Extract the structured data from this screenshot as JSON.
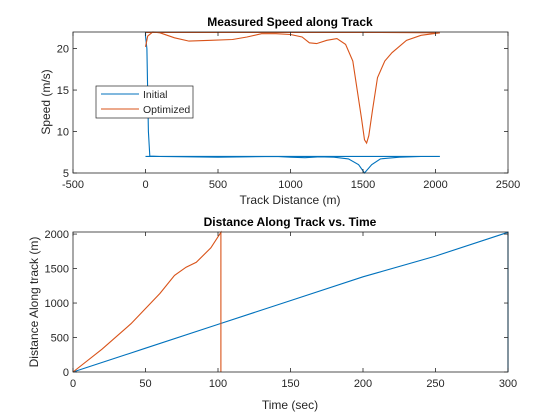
{
  "colors": {
    "initial": "#0072BD",
    "optimized": "#D95319",
    "axis": "#262626",
    "background": "#ffffff"
  },
  "chart_data": [
    {
      "type": "line",
      "title": "Measured Speed along Track",
      "xlabel": "Track Distance (m)",
      "ylabel": "Speed (m/s)",
      "xlim": [
        -500,
        2500
      ],
      "ylim": [
        5,
        22
      ],
      "xticks": [
        -500,
        0,
        500,
        1000,
        1500,
        2000,
        2500
      ],
      "yticks": [
        5,
        10,
        15,
        20
      ],
      "grid": false,
      "legend": {
        "placement": "middle-left",
        "entries": [
          "Initial",
          "Optimized"
        ]
      },
      "series": [
        {
          "name": "Initial",
          "color": "#0072BD",
          "points": [
            [
              0,
              22
            ],
            [
              0,
              21.5
            ],
            [
              10,
              20
            ],
            [
              20,
              10
            ],
            [
              30,
              7.05
            ],
            [
              100,
              7.0
            ],
            [
              300,
              6.95
            ],
            [
              500,
              6.9
            ],
            [
              700,
              6.95
            ],
            [
              900,
              7.0
            ],
            [
              1000,
              6.9
            ],
            [
              1100,
              6.85
            ],
            [
              1200,
              6.95
            ],
            [
              1300,
              6.9
            ],
            [
              1400,
              6.7
            ],
            [
              1470,
              6.0
            ],
            [
              1510,
              5.0
            ],
            [
              1560,
              6.0
            ],
            [
              1620,
              6.7
            ],
            [
              1750,
              6.9
            ],
            [
              1900,
              7.0
            ],
            [
              2030,
              7.0
            ],
            [
              1800,
              7.0
            ],
            [
              1200,
              7.0
            ],
            [
              600,
              7.0
            ],
            [
              0,
              7.0
            ]
          ]
        },
        {
          "name": "Optimized",
          "color": "#D95319",
          "points": [
            [
              0,
              20.2
            ],
            [
              15,
              21.5
            ],
            [
              50,
              22
            ],
            [
              100,
              21.9
            ],
            [
              200,
              21.3
            ],
            [
              300,
              20.9
            ],
            [
              450,
              21.0
            ],
            [
              600,
              21.1
            ],
            [
              700,
              21.4
            ],
            [
              800,
              21.8
            ],
            [
              900,
              21.8
            ],
            [
              1000,
              21.7
            ],
            [
              1080,
              21.4
            ],
            [
              1130,
              20.7
            ],
            [
              1180,
              20.6
            ],
            [
              1250,
              21.0
            ],
            [
              1320,
              21.2
            ],
            [
              1380,
              20.5
            ],
            [
              1430,
              18.5
            ],
            [
              1460,
              15.0
            ],
            [
              1490,
              11.5
            ],
            [
              1510,
              9.0
            ],
            [
              1525,
              8.6
            ],
            [
              1540,
              9.5
            ],
            [
              1565,
              12.5
            ],
            [
              1600,
              16.5
            ],
            [
              1650,
              18.5
            ],
            [
              1700,
              19.5
            ],
            [
              1800,
              21.0
            ],
            [
              1900,
              21.6
            ],
            [
              2030,
              21.9
            ],
            [
              1500,
              21.95
            ],
            [
              800,
              21.95
            ],
            [
              100,
              21.95
            ],
            [
              0,
              21.95
            ]
          ]
        }
      ]
    },
    {
      "type": "line",
      "title": "Distance Along Track vs. Time",
      "xlabel": "Time (sec)",
      "ylabel": "Distance Along track (m)",
      "xlim": [
        0,
        300
      ],
      "ylim": [
        0,
        2030
      ],
      "xticks": [
        0,
        50,
        100,
        150,
        200,
        250,
        300
      ],
      "yticks": [
        0,
        500,
        1000,
        1500,
        2000
      ],
      "grid": false,
      "series": [
        {
          "name": "Initial",
          "color": "#0072BD",
          "points": [
            [
              0,
              0
            ],
            [
              50,
              345
            ],
            [
              100,
              690
            ],
            [
              150,
              1035
            ],
            [
              200,
              1380
            ],
            [
              210,
              1440
            ],
            [
              250,
              1680
            ],
            [
              300,
              2025
            ],
            [
              300,
              0
            ]
          ]
        },
        {
          "name": "Optimized",
          "color": "#D95319",
          "points": [
            [
              0,
              0
            ],
            [
              20,
              330
            ],
            [
              40,
              700
            ],
            [
              60,
              1140
            ],
            [
              70,
              1400
            ],
            [
              78,
              1520
            ],
            [
              85,
              1590
            ],
            [
              95,
              1800
            ],
            [
              102,
              2025
            ],
            [
              102,
              0
            ]
          ]
        }
      ]
    }
  ]
}
